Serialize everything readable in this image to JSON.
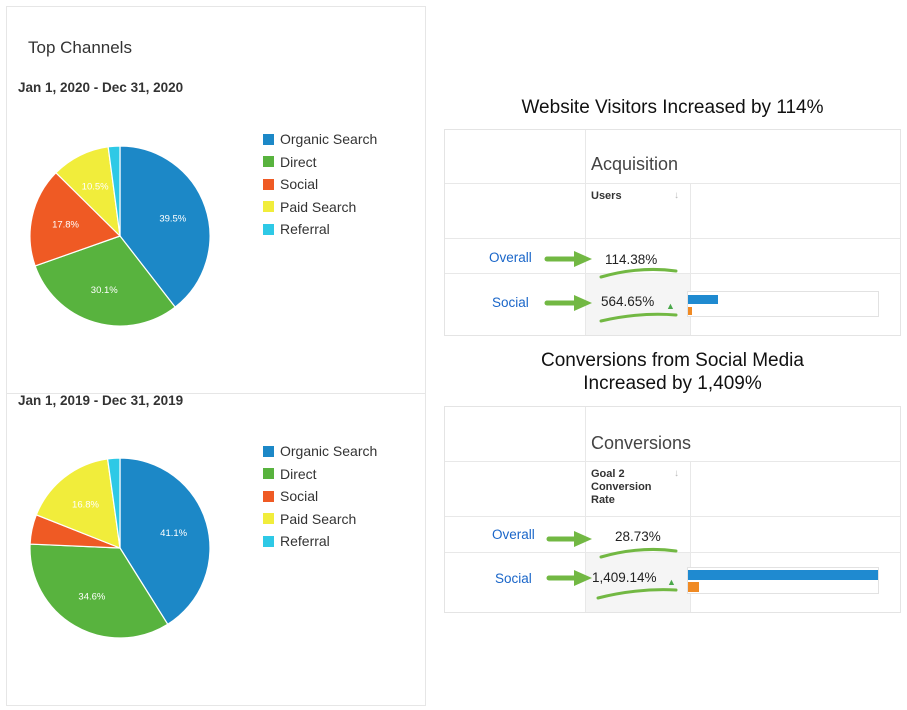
{
  "left_panel": {
    "title": "Top Channels"
  },
  "colors": {
    "organic": "#1c88c7",
    "direct": "#58b33e",
    "social": "#ef5a24",
    "paid": "#f1ed3b",
    "referral": "#2ec9e6",
    "annotation": "#72b843"
  },
  "chart_data": [
    {
      "type": "pie",
      "title": "Jan 1, 2020 - Dec 31, 2020",
      "categories": [
        "Organic Search",
        "Direct",
        "Social",
        "Paid Search",
        "Referral"
      ],
      "values": [
        39.5,
        30.1,
        17.8,
        10.5,
        2.1
      ],
      "labels": [
        "39.5%",
        "30.1%",
        "17.8%",
        "10.5%",
        ""
      ],
      "legend": "right"
    },
    {
      "type": "pie",
      "title": "Jan 1, 2019 - Dec 31, 2019",
      "categories": [
        "Organic Search",
        "Direct",
        "Social",
        "Paid Search",
        "Referral"
      ],
      "values": [
        41.1,
        34.6,
        5.3,
        16.8,
        2.2
      ],
      "labels": [
        "41.1%",
        "34.6%",
        "",
        "16.8%",
        ""
      ],
      "legend": "right"
    }
  ],
  "visitors": {
    "headline": "Website Visitors Increased by 114%",
    "group": "Acquisition",
    "column": "Users",
    "sort_icon": "↓",
    "rows": [
      {
        "label": "Overall",
        "value": "114.38%",
        "blue_fraction": 0,
        "orange_fraction": 0
      },
      {
        "label": "Social",
        "value": "564.65%",
        "arrow": "▲",
        "blue_fraction": 0.16,
        "orange_fraction": 0.02
      }
    ]
  },
  "conversions": {
    "headline_line1": "Conversions from Social Media",
    "headline_line2": "Increased by 1,409%",
    "group": "Conversions",
    "column_lines": [
      "Goal 2",
      "Conversion",
      "Rate"
    ],
    "sort_icon": "↓",
    "rows": [
      {
        "label": "Overall",
        "value": "28.73%",
        "blue_fraction": 0,
        "orange_fraction": 0
      },
      {
        "label": "Social",
        "value": "1,409.14%",
        "arrow": "▲",
        "blue_fraction": 1.0,
        "orange_fraction": 0.06
      }
    ]
  }
}
